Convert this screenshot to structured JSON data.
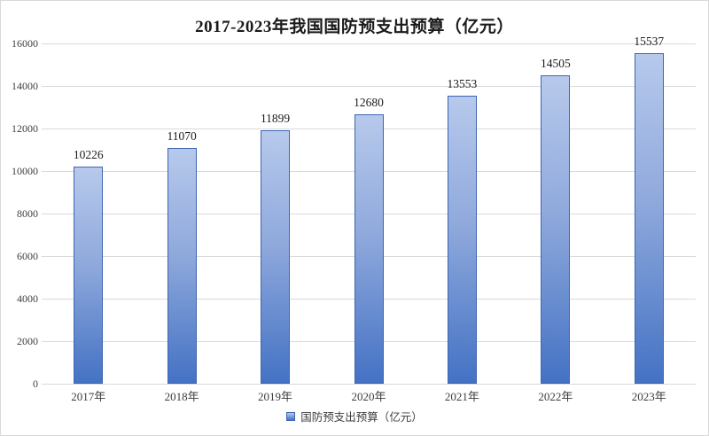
{
  "chart_data": {
    "type": "bar",
    "title": "2017-2023年我国国防预支出预算（亿元）",
    "categories": [
      "2017年",
      "2018年",
      "2019年",
      "2020年",
      "2021年",
      "2022年",
      "2023年"
    ],
    "values": [
      10226,
      11070,
      11899,
      12680,
      13553,
      14505,
      15537
    ],
    "series_name": "国防预支出预算（亿元）",
    "xlabel": "",
    "ylabel": "",
    "ylim": [
      0,
      16000
    ],
    "ytick_step": 2000,
    "yticks": [
      0,
      2000,
      4000,
      6000,
      8000,
      10000,
      12000,
      14000,
      16000
    ],
    "grid": true,
    "legend_position": "bottom",
    "colors": {
      "bar_fill_top": "#b7c9ec",
      "bar_fill_bottom": "#4472c4",
      "bar_border": "#3d65b0",
      "gridline": "#d9d9d9",
      "title_text": "#1a1a1a",
      "tick_text": "#404040"
    }
  }
}
